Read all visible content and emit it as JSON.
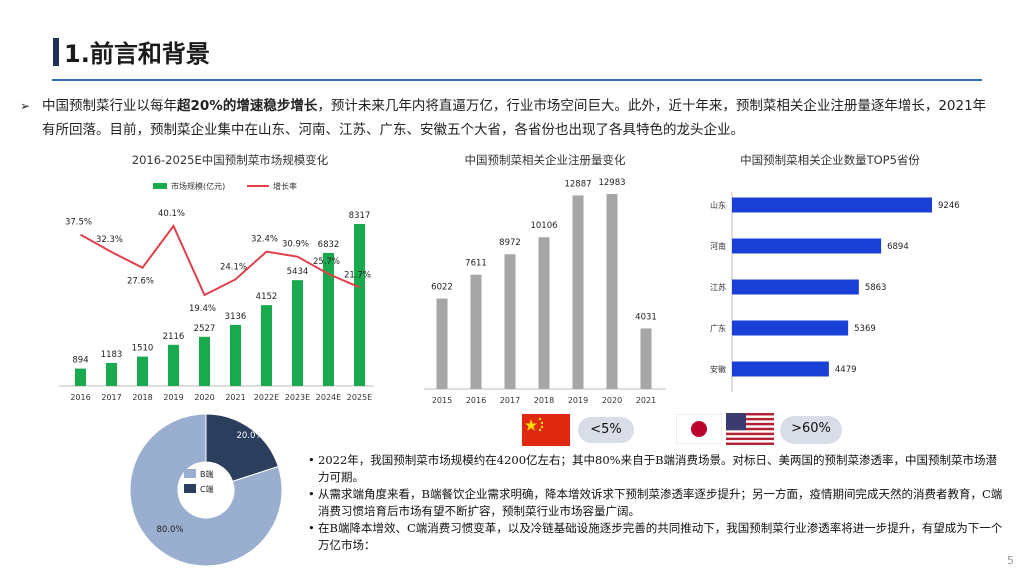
{
  "slide": {
    "title": "1.前言和背景",
    "page_number": "5"
  },
  "intro": {
    "bullet": "➢",
    "text_before": "中国预制菜行业以每年",
    "text_emph": "超20%的增速稳步增长",
    "text_after": "，预计未来几年内将直逼万亿，行业市场空间巨大。此外，近十年来，预制菜相关企业注册量逐年增长，2021年有所回落。目前，预制菜企业集中在山东、河南、江苏、广东、安徽五个大省，各省份也出现了各具特色的龙头企业。"
  },
  "chart_data": [
    {
      "type": "bar",
      "title": "2016-2025E中国预制菜市场规模变化",
      "categories": [
        "2016",
        "2017",
        "2018",
        "2019",
        "2020",
        "2021",
        "2022E",
        "2023E",
        "2024E",
        "2025E"
      ],
      "series": [
        {
          "name": "市场规模(亿元)",
          "type": "bar",
          "values": [
            894,
            1183,
            1510,
            2116,
            2527,
            3136,
            4152,
            5434,
            6832,
            8317
          ]
        },
        {
          "name": "增长率",
          "type": "line",
          "values": [
            37.5,
            32.3,
            27.6,
            40.1,
            19.4,
            24.1,
            32.4,
            30.9,
            25.7,
            21.7
          ],
          "labels": [
            "37.5%",
            "32.3%",
            "27.6%",
            "40.1%",
            "19.4%",
            "24.1%",
            "32.4%",
            "30.9%",
            "25.7%",
            "21.7%"
          ]
        }
      ],
      "xtick_labels": [
        "2016",
        "2017",
        "2018",
        "2019",
        "2020",
        "2021",
        "2022E",
        "2023E",
        "2024E",
        "2025E"
      ],
      "colors": {
        "bar": "#19a94f",
        "line": "#e0404a"
      },
      "legend": "top"
    },
    {
      "type": "bar",
      "title": "中国预制菜相关企业注册量变化",
      "categories": [
        "2015",
        "2016",
        "2017",
        "2018",
        "2019",
        "2020",
        "2021"
      ],
      "values": [
        6022,
        7611,
        8972,
        10106,
        12887,
        12983,
        4031
      ],
      "colors": {
        "bar": "#a6a6a6"
      }
    },
    {
      "type": "bar",
      "orientation": "horizontal",
      "title": "中国预制菜相关企业数量TOP5省份",
      "categories": [
        "山东",
        "河南",
        "江苏",
        "广东",
        "安徽"
      ],
      "values": [
        9246,
        6894,
        5863,
        5369,
        4479
      ],
      "colors": {
        "bar": "#1a3fd6"
      }
    },
    {
      "type": "pie",
      "labels": [
        "B端",
        "C端"
      ],
      "values": [
        80.0,
        20.0
      ],
      "value_labels": [
        "80.0%",
        "20.0%"
      ],
      "colors": [
        "#9aaed0",
        "#2c3e5e"
      ],
      "legend": "center"
    }
  ],
  "comparison": {
    "china_value": "<5%",
    "japan_us_value": ">60%"
  },
  "notes": [
    "2022年，我国预制菜市场规模约在4200亿左右；其中80%来自于B端消费场景。对标日、美两国的预制菜渗透率，中国预制菜市场潜力可期。",
    "从需求端角度来看，B端餐饮企业需求明确，降本增效诉求下预制菜渗透率逐步提升；另一方面，疫情期间完成天然的消费者教育，C端消费习惯培育后市场有望不断扩容，预制菜行业市场容量广阔。",
    "在B端降本增效、C端消费习惯变革，以及冷链基础设施逐步完善的共同推动下，我国预制菜行业渗透率将进一步提升，有望成为下一个万亿市场："
  ],
  "note_bullet": "•"
}
